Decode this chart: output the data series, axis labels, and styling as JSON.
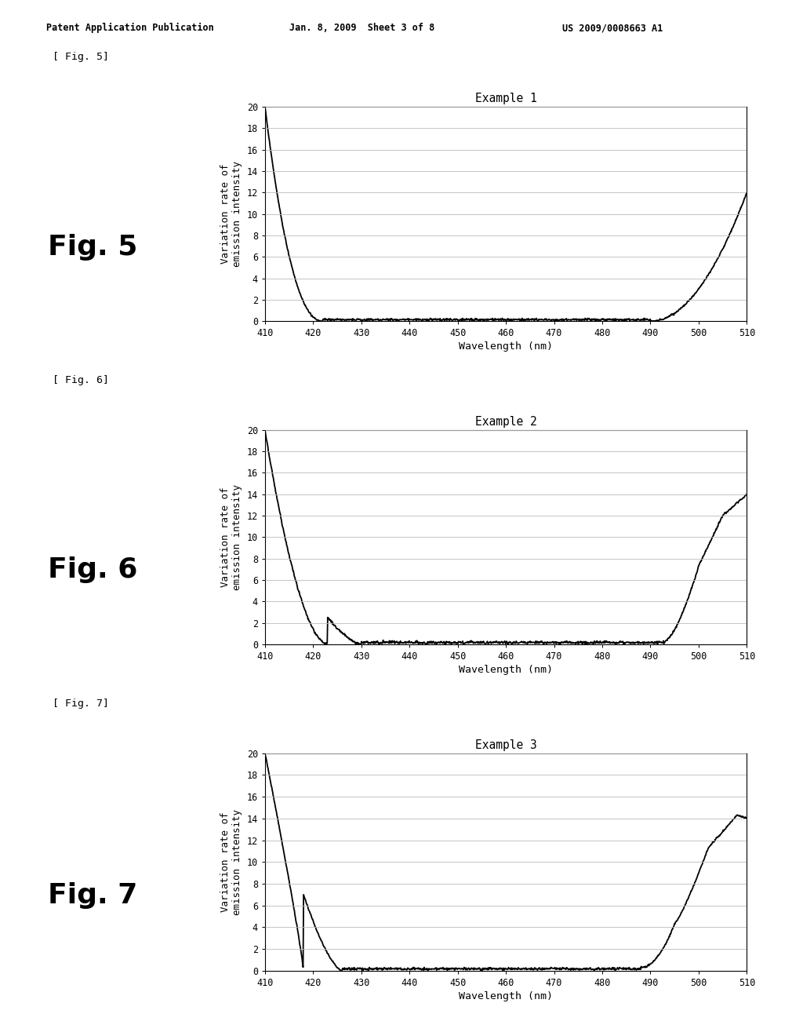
{
  "header_left": "Patent Application Publication",
  "header_mid": "Jan. 8, 2009  Sheet 3 of 8",
  "header_right": "US 2009/0008663 A1",
  "fig_labels": [
    "[ Fig. 5]",
    "[ Fig. 6]",
    "[ Fig. 7]"
  ],
  "fig_titles_large": [
    "Fig. 5",
    "Fig. 6",
    "Fig. 7"
  ],
  "plot_titles": [
    "Example 1",
    "Example 2",
    "Example 3"
  ],
  "ylabel": "Variation rate of\nemission intensity",
  "xlabel": "Wavelength (nm)",
  "xlim": [
    410,
    510
  ],
  "ylim": [
    0,
    20
  ],
  "yticks": [
    0,
    2,
    4,
    6,
    8,
    10,
    12,
    14,
    16,
    18,
    20
  ],
  "xticks": [
    410,
    420,
    430,
    440,
    450,
    460,
    470,
    480,
    490,
    500,
    510
  ],
  "bg_color": "#ffffff",
  "line_color": "#000000",
  "grid_color": "#bbbbbb"
}
